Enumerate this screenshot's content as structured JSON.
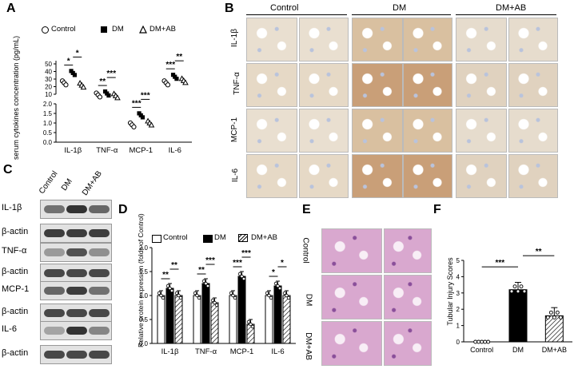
{
  "panels": {
    "A": "A",
    "B": "B",
    "C": "C",
    "D": "D",
    "E": "E",
    "F": "F"
  },
  "groups": [
    "Control",
    "DM",
    "DM+AB"
  ],
  "markers": [
    "IL-1β",
    "TNF-α",
    "MCP-1",
    "IL-6"
  ],
  "ihc_groups": [
    "Control",
    "DM",
    "DM+AB"
  ],
  "ihc_rows": [
    "IL-1β",
    "TNF-α",
    "MCP-1",
    "IL-6"
  ],
  "he_rows": [
    "Control",
    "DM",
    "DM+AB"
  ],
  "wb_columns": [
    "Control",
    "DM",
    "DM+AB"
  ],
  "wb_rows": [
    "IL-1β",
    "β-actin",
    "TNF-α",
    "β-actin",
    "MCP-1",
    "β-actin",
    "IL-6",
    "β-actin"
  ],
  "chart_data": [
    {
      "panel": "A",
      "type": "scatter",
      "ylabel": "serum cytokines concentration (pg/mL)",
      "categories": [
        "IL-1β",
        "TNF-α",
        "MCP-1",
        "IL-6"
      ],
      "y_upper_ticks": [
        "10",
        "20",
        "30",
        "40",
        "50"
      ],
      "y_lower_ticks": [
        "0.0",
        "0.5",
        "1.0",
        "1.5",
        "2.0"
      ],
      "y_break": [
        2,
        8
      ],
      "legend": [
        "Control",
        "DM",
        "DM+AB"
      ],
      "series": [
        {
          "name": "Control",
          "values": [
            25,
            9,
            0.9,
            25
          ]
        },
        {
          "name": "DM",
          "values": [
            38,
            11,
            1.4,
            33
          ]
        },
        {
          "name": "DM+AB",
          "values": [
            22,
            8,
            1.0,
            28
          ]
        }
      ],
      "significance": [
        {
          "category": "IL-1β",
          "pairs": [
            "*",
            "*"
          ]
        },
        {
          "category": "TNF-α",
          "pairs": [
            "**",
            "***"
          ]
        },
        {
          "category": "MCP-1",
          "pairs": [
            "***",
            "***"
          ]
        },
        {
          "category": "IL-6",
          "pairs": [
            "***",
            "**"
          ]
        }
      ]
    },
    {
      "panel": "D",
      "type": "bar",
      "ylabel": "Relative protein expression (folds of Control)",
      "categories": [
        "IL-1β",
        "TNF-α",
        "MCP-1",
        "IL-6"
      ],
      "yticks": [
        "0.0",
        "0.5",
        "1.0",
        "1.5",
        "2.0"
      ],
      "ylim": [
        0,
        2.0
      ],
      "legend": [
        "Control",
        "DM",
        "DM+AB"
      ],
      "series": [
        {
          "name": "Control",
          "values": [
            1.0,
            1.0,
            1.0,
            1.0
          ]
        },
        {
          "name": "DM",
          "values": [
            1.15,
            1.25,
            1.4,
            1.2
          ]
        },
        {
          "name": "DM+AB",
          "values": [
            1.0,
            0.85,
            0.4,
            1.0
          ]
        }
      ],
      "significance": [
        {
          "category": "IL-1β",
          "pairs": [
            "**",
            "**"
          ]
        },
        {
          "category": "TNF-α",
          "pairs": [
            "**",
            "***"
          ]
        },
        {
          "category": "MCP-1",
          "pairs": [
            "***",
            "***"
          ]
        },
        {
          "category": "IL-6",
          "pairs": [
            "*",
            "*"
          ]
        }
      ]
    },
    {
      "panel": "F",
      "type": "bar",
      "ylabel": "Tubular Injury Scores",
      "categories": [
        "Control",
        "DM",
        "DM+AB"
      ],
      "values": [
        0.0,
        3.2,
        1.6
      ],
      "errors": [
        0.0,
        0.45,
        0.5
      ],
      "yticks": [
        "0",
        "1",
        "2",
        "3",
        "4",
        "5"
      ],
      "ylim": [
        0,
        5
      ],
      "significance": [
        "***",
        "**"
      ]
    }
  ]
}
